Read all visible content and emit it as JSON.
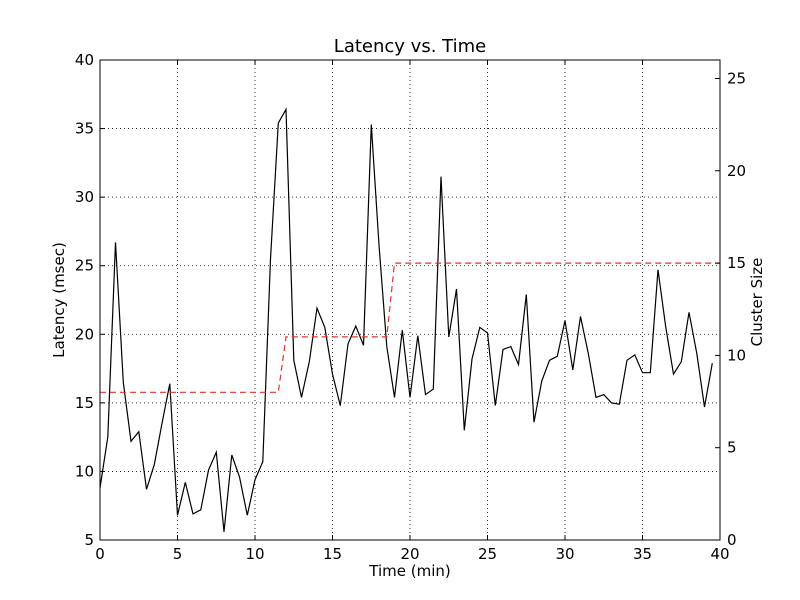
{
  "chart_data": {
    "type": "line",
    "title": "Latency vs. Time",
    "xlabel": "Time (min)",
    "ylabel": "Latency (msec)",
    "ylabel_right": "Cluster Size",
    "xlim": [
      0,
      40
    ],
    "ylim": [
      5,
      40
    ],
    "ylim_right": [
      0,
      26
    ],
    "x_ticks": [
      0,
      5,
      10,
      15,
      20,
      25,
      30,
      35,
      40
    ],
    "y_ticks": [
      5,
      10,
      15,
      20,
      25,
      30,
      35,
      40
    ],
    "y_right_ticks": [
      0,
      5,
      10,
      15,
      20,
      25
    ],
    "grid": true,
    "series": [
      {
        "axis": "left",
        "color": "#000000",
        "style": "solid",
        "x": [
          0,
          0.5,
          1,
          1.5,
          2,
          2.5,
          3,
          3.5,
          4,
          4.5,
          5,
          5.5,
          6,
          6.5,
          7,
          7.5,
          8,
          8.5,
          9,
          9.5,
          10,
          10.5,
          11,
          11.5,
          12,
          12.5,
          13,
          13.5,
          14,
          14.5,
          15,
          15.5,
          16,
          16.5,
          17,
          17.5,
          18,
          18.5,
          19,
          19.5,
          20,
          20.5,
          21,
          21.5,
          22,
          22.5,
          23,
          23.5,
          24,
          24.5,
          25,
          25.5,
          26,
          26.5,
          27,
          27.5,
          28,
          28.5,
          29,
          29.5,
          30,
          30.5,
          31,
          31.5,
          32,
          32.5,
          33,
          33.5,
          34,
          34.5,
          35,
          35.5,
          36,
          36.5,
          37,
          37.5,
          38,
          38.5,
          39,
          39.5
        ],
        "values": [
          8.8,
          12.5,
          26.7,
          16.5,
          12.2,
          12.9,
          8.7,
          10.5,
          13.5,
          16.4,
          6.8,
          9.2,
          6.9,
          7.2,
          10.1,
          11.4,
          5.6,
          11.2,
          9.6,
          6.8,
          9.4,
          10.7,
          25.5,
          35.4,
          36.4,
          18.1,
          15.4,
          18.0,
          21.9,
          20.5,
          17.1,
          14.8,
          19.3,
          20.6,
          19.2,
          35.3,
          26.5,
          19.1,
          15.4,
          20.3,
          15.4,
          19.9,
          15.6,
          16.0,
          31.5,
          19.8,
          23.3,
          13.0,
          18.2,
          20.5,
          20.1,
          14.8,
          18.9,
          19.1,
          17.8,
          22.9,
          13.6,
          16.6,
          18.1,
          18.4,
          21.0,
          17.4,
          21.3,
          18.6,
          15.4,
          15.6,
          15.0,
          14.9,
          18.1,
          18.5,
          17.2,
          17.2,
          24.7,
          20.5,
          17.1,
          18.0,
          21.6,
          18.6,
          14.7,
          17.9
        ]
      },
      {
        "axis": "right",
        "color": "#e8312a",
        "style": "dashed",
        "x": [
          0,
          11.5,
          12,
          18.5,
          19,
          40
        ],
        "values": [
          8,
          8,
          11,
          11,
          15,
          15
        ]
      }
    ]
  }
}
